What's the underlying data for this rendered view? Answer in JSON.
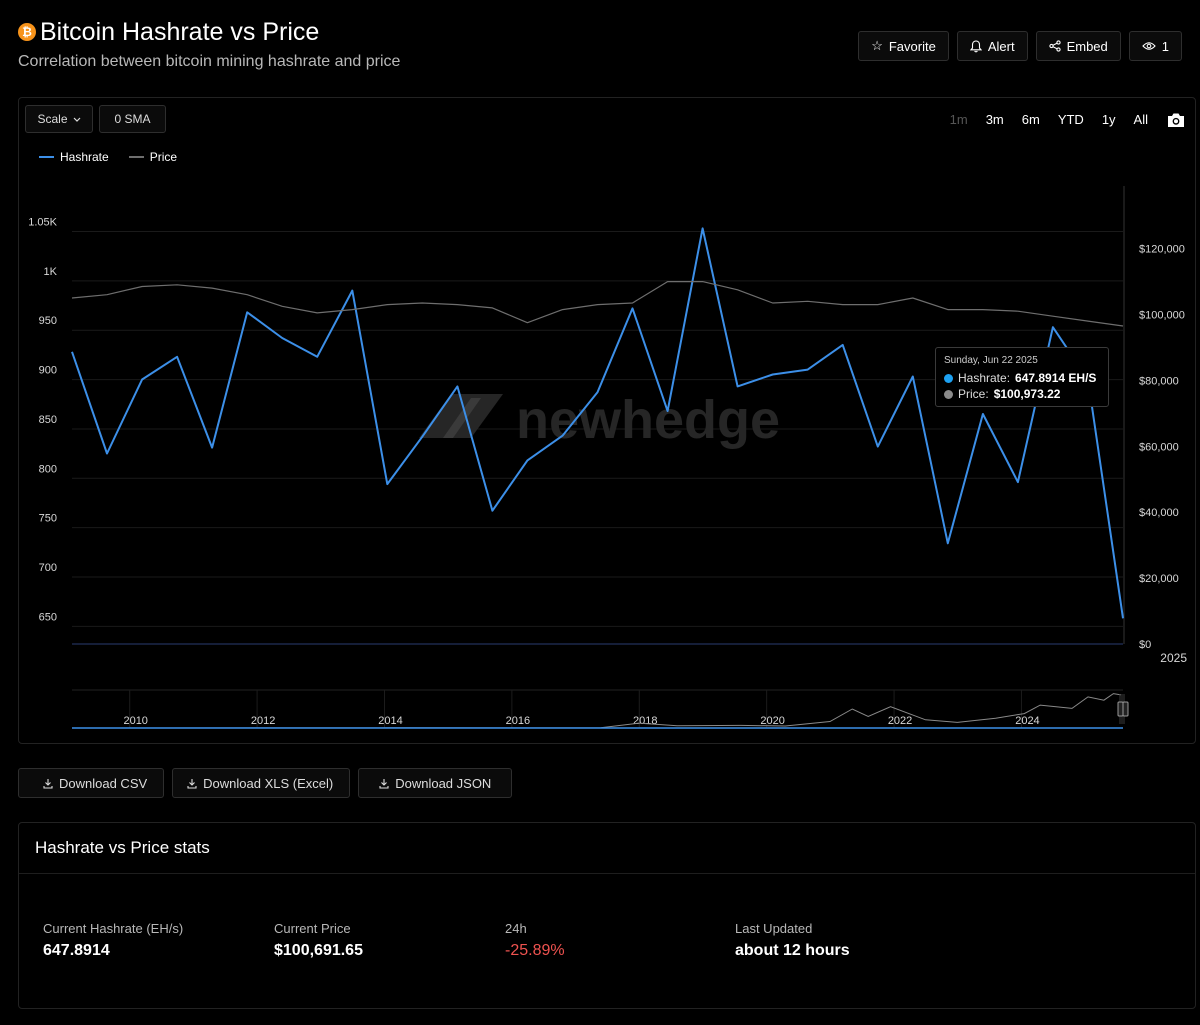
{
  "header": {
    "title": "Bitcoin Hashrate vs Price",
    "subtitle": "Correlation between bitcoin mining hashrate and price",
    "favorite_label": "Favorite",
    "alert_label": "Alert",
    "embed_label": "Embed",
    "views_count": "1"
  },
  "controls": {
    "scale_label": "Scale",
    "sma_label": "0 SMA",
    "ranges": [
      "1m",
      "3m",
      "6m",
      "YTD",
      "1y",
      "All"
    ],
    "active_range": "1m"
  },
  "watermark": "newhedge",
  "tooltip": {
    "date": "Sunday, Jun 22 2025",
    "hashrate_label": "Hashrate:",
    "hashrate_value": "647.8914 EH/S",
    "price_label": "Price:",
    "price_value": "$100,973.22"
  },
  "colors": {
    "hashrate": "#3c8fe8",
    "price": "#6e6e6e",
    "negative": "#ef5350",
    "accent_btc": "#f7931a"
  },
  "chart_data": {
    "type": "line",
    "legend_position": "top-left",
    "grid": true,
    "series": [
      {
        "name": "Hashrate",
        "axis": "left",
        "values": [
          918,
          815,
          890,
          913,
          821,
          958,
          932,
          913,
          980,
          784,
          832,
          883,
          757,
          808,
          833,
          877,
          962,
          858,
          1043,
          883,
          895,
          900,
          925,
          822,
          893,
          724,
          855,
          786,
          943,
          890,
          648
        ]
      },
      {
        "name": "Price",
        "axis": "right",
        "values": [
          105000,
          106000,
          108500,
          109000,
          108000,
          106000,
          102500,
          100500,
          101500,
          103000,
          103500,
          103000,
          102000,
          97500,
          101500,
          103000,
          103500,
          110000,
          110000,
          107500,
          103500,
          104000,
          103000,
          103000,
          105000,
          101500,
          101500,
          101000,
          99500,
          98000,
          96500
        ]
      }
    ],
    "y_left": {
      "ticks": [
        "650",
        "700",
        "750",
        "800",
        "850",
        "900",
        "950",
        "1K",
        "1.05K"
      ],
      "range": [
        622,
        1086
      ]
    },
    "y_right": {
      "ticks": [
        "$0",
        "$20,000",
        "$40,000",
        "$60,000",
        "$80,000",
        "$100,000",
        "$120,000"
      ],
      "range": [
        0,
        139000
      ]
    },
    "x_label_main": "2025",
    "navigator": {
      "x_ticks": [
        "2010",
        "2012",
        "2014",
        "2016",
        "2018",
        "2020",
        "2022",
        "2024"
      ],
      "x_range": [
        2009,
        2025.5
      ],
      "price_points": [
        [
          2009,
          0
        ],
        [
          2013,
          300
        ],
        [
          2014,
          600
        ],
        [
          2016,
          400
        ],
        [
          2017.3,
          1000
        ],
        [
          2017.9,
          15000
        ],
        [
          2018.5,
          7000
        ],
        [
          2019.5,
          8000
        ],
        [
          2020.2,
          6000
        ],
        [
          2020.9,
          20000
        ],
        [
          2021.25,
          58000
        ],
        [
          2021.5,
          35000
        ],
        [
          2021.85,
          65000
        ],
        [
          2022.4,
          25000
        ],
        [
          2022.9,
          17000
        ],
        [
          2023.5,
          30000
        ],
        [
          2023.95,
          44000
        ],
        [
          2024.2,
          70000
        ],
        [
          2024.7,
          60000
        ],
        [
          2024.95,
          95000
        ],
        [
          2025.2,
          85000
        ],
        [
          2025.35,
          105000
        ],
        [
          2025.47,
          101000
        ]
      ],
      "price_max": 110000
    }
  },
  "downloads": {
    "csv_label": "Download CSV",
    "xls_label": "Download XLS (Excel)",
    "json_label": "Download JSON"
  },
  "stats": {
    "title": "Hashrate vs Price stats",
    "hashrate_label": "Current Hashrate (EH/s)",
    "hashrate_value": "647.8914",
    "price_label": "Current Price",
    "price_value": "$100,691.65",
    "change_label": "24h",
    "change_value": "-25.89%",
    "updated_label": "Last Updated",
    "updated_value": "about 12 hours"
  }
}
